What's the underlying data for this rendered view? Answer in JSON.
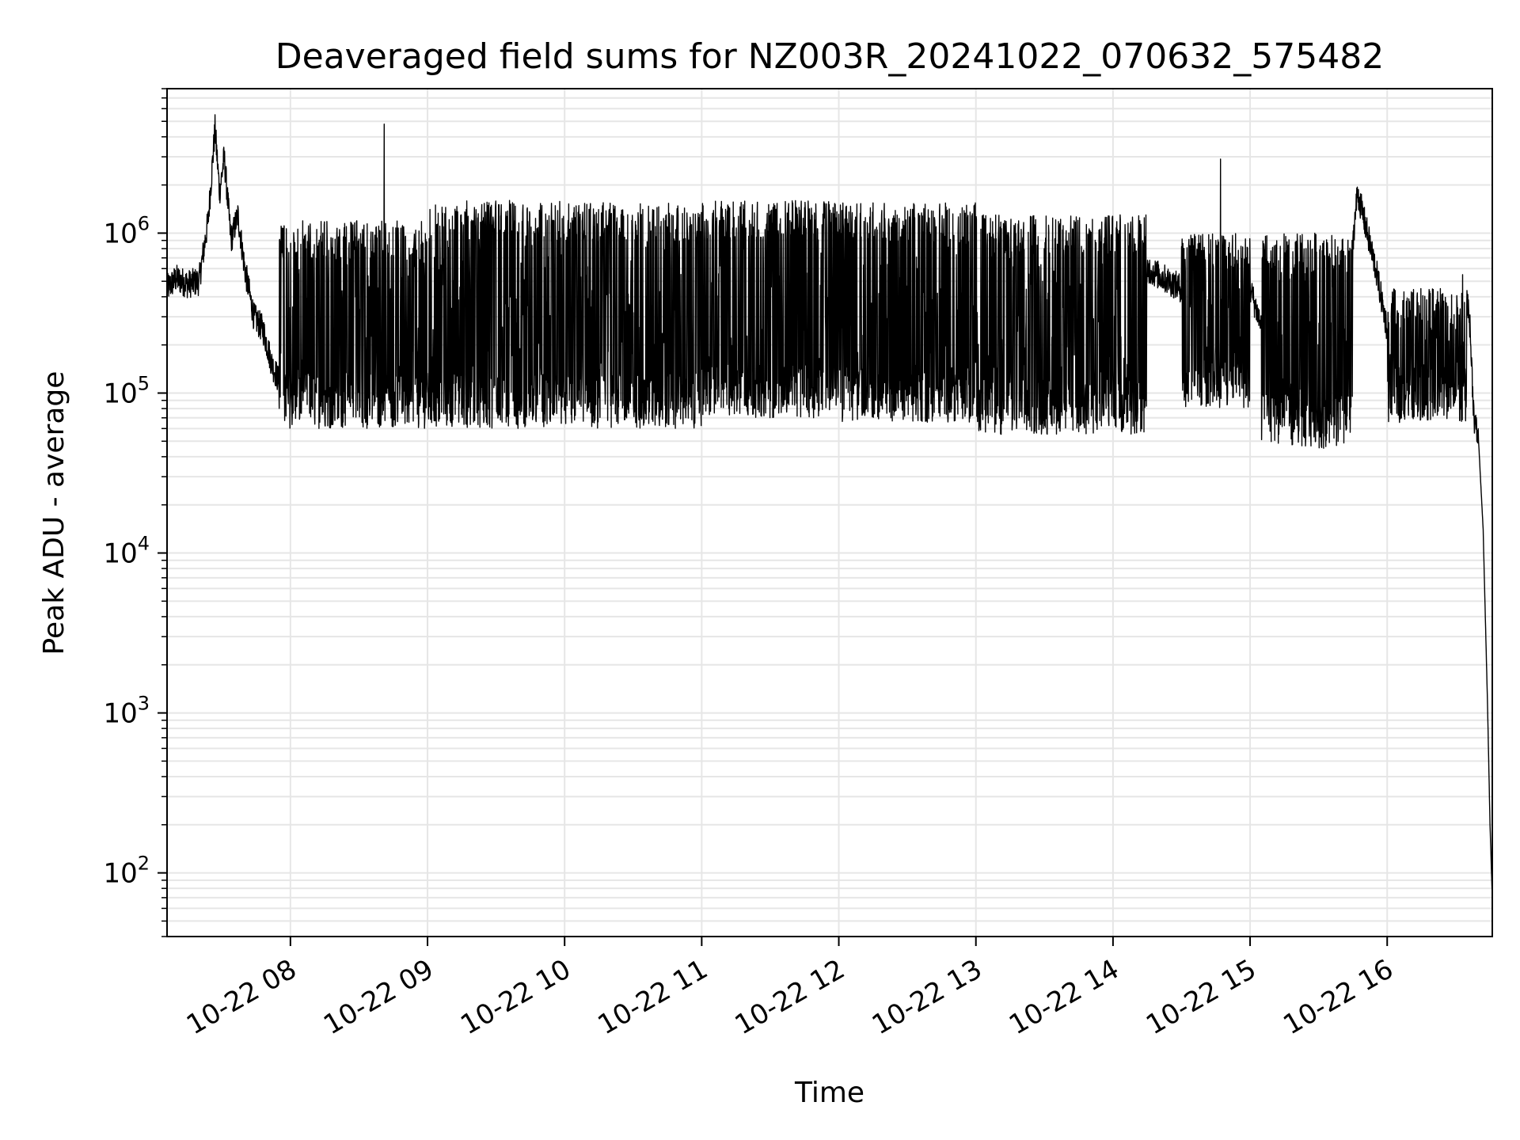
{
  "chart_data": {
    "type": "line",
    "title": "Deaveraged field sums for NZ003R_20241022_070632_575482",
    "xlabel": "Time",
    "ylabel": "Peak ADU - average",
    "yscale": "log",
    "ylim": [
      40,
      8000000
    ],
    "xlim": [
      "10-22 07:06",
      "10-22 16:46"
    ],
    "grid": true,
    "line_color": "#000000",
    "grid_color": "#e6e6e6",
    "x_ticks": [
      {
        "time": "10-22 08:00",
        "label": "10-22 08"
      },
      {
        "time": "10-22 09:00",
        "label": "10-22 09"
      },
      {
        "time": "10-22 10:00",
        "label": "10-22 10"
      },
      {
        "time": "10-22 11:00",
        "label": "10-22 11"
      },
      {
        "time": "10-22 12:00",
        "label": "10-22 12"
      },
      {
        "time": "10-22 13:00",
        "label": "10-22 13"
      },
      {
        "time": "10-22 14:00",
        "label": "10-22 14"
      },
      {
        "time": "10-22 15:00",
        "label": "10-22 15"
      },
      {
        "time": "10-22 16:00",
        "label": "10-22 16"
      }
    ],
    "y_ticks": [
      {
        "value": 100,
        "base": "10",
        "exp": "2"
      },
      {
        "value": 1000,
        "base": "10",
        "exp": "3"
      },
      {
        "value": 10000,
        "base": "10",
        "exp": "4"
      },
      {
        "value": 100000,
        "base": "10",
        "exp": "5"
      },
      {
        "value": 1000000,
        "base": "10",
        "exp": "6"
      }
    ],
    "series": [
      {
        "points": [
          [
            "10-22 07:06",
            450000
          ],
          [
            "10-22 07:10",
            520000
          ],
          [
            "10-22 07:15",
            480000
          ],
          [
            "10-22 07:20",
            500000
          ],
          [
            "10-22 07:24",
            1200000
          ],
          [
            "10-22 07:27",
            4500000
          ],
          [
            "10-22 07:29",
            1800000
          ],
          [
            "10-22 07:31",
            3000000
          ],
          [
            "10-22 07:34",
            900000
          ],
          [
            "10-22 07:37",
            1300000
          ],
          [
            "10-22 07:40",
            600000
          ],
          [
            "10-22 07:44",
            300000
          ],
          [
            "10-22 07:48",
            250000
          ],
          [
            "10-22 07:52",
            150000
          ],
          [
            "10-22 07:56",
            110000
          ],
          [
            "10-22 08:00",
            100000
          ],
          [
            "10-22 08:10",
            95000
          ],
          [
            "10-22 08:20",
            100000
          ],
          [
            "10-22 08:30",
            110000
          ],
          [
            "10-22 08:40",
            120000
          ],
          [
            "10-22 08:41",
            4800000
          ],
          [
            "10-22 08:42",
            110000
          ],
          [
            "10-22 08:50",
            120000
          ],
          [
            "10-22 09:00",
            110000
          ],
          [
            "10-22 09:30",
            100000
          ],
          [
            "10-22 10:00",
            100000
          ],
          [
            "10-22 10:30",
            95000
          ],
          [
            "10-22 11:00",
            90000
          ],
          [
            "10-22 11:30",
            150000
          ],
          [
            "10-22 12:00",
            200000
          ],
          [
            "10-22 12:30",
            220000
          ],
          [
            "10-22 13:00",
            200000
          ],
          [
            "10-22 13:30",
            150000
          ],
          [
            "10-22 14:00",
            140000
          ],
          [
            "10-22 14:15",
            600000
          ],
          [
            "10-22 14:30",
            450000
          ],
          [
            "10-22 14:45",
            900000
          ],
          [
            "10-22 14:47",
            2900000
          ],
          [
            "10-22 15:00",
            450000
          ],
          [
            "10-22 15:10",
            150000
          ],
          [
            "10-22 15:20",
            600000
          ],
          [
            "10-22 15:35",
            700000
          ],
          [
            "10-22 15:45",
            900000
          ],
          [
            "10-22 15:47",
            1800000
          ],
          [
            "10-22 15:55",
            600000
          ],
          [
            "10-22 16:00",
            250000
          ],
          [
            "10-22 16:15",
            200000
          ],
          [
            "10-22 16:30",
            250000
          ],
          [
            "10-22 16:33",
            550000
          ],
          [
            "10-22 16:36",
            300000
          ],
          [
            "10-22 16:38",
            70000
          ],
          [
            "10-22 16:40",
            50000
          ],
          [
            "10-22 16:42",
            14000
          ],
          [
            "10-22 16:44",
            1000
          ],
          [
            "10-22 16:45",
            200
          ],
          [
            "10-22 16:46",
            70
          ]
        ],
        "bands": [
          {
            "from": "10-22 07:55",
            "to": "10-22 09:00",
            "low": 60000,
            "high": 1200000
          },
          {
            "from": "10-22 09:00",
            "to": "10-22 10:00",
            "low": 60000,
            "high": 1600000
          },
          {
            "from": "10-22 10:00",
            "to": "10-22 11:00",
            "low": 60000,
            "high": 1550000
          },
          {
            "from": "10-22 11:00",
            "to": "10-22 12:00",
            "low": 70000,
            "high": 1600000
          },
          {
            "from": "10-22 12:00",
            "to": "10-22 13:00",
            "low": 65000,
            "high": 1550000
          },
          {
            "from": "10-22 13:00",
            "to": "10-22 14:15",
            "low": 55000,
            "high": 1300000
          },
          {
            "from": "10-22 14:30",
            "to": "10-22 15:00",
            "low": 80000,
            "high": 1000000
          },
          {
            "from": "10-22 15:05",
            "to": "10-22 15:45",
            "low": 45000,
            "high": 1000000
          },
          {
            "from": "10-22 16:00",
            "to": "10-22 16:35",
            "low": 65000,
            "high": 450000
          }
        ]
      }
    ]
  }
}
